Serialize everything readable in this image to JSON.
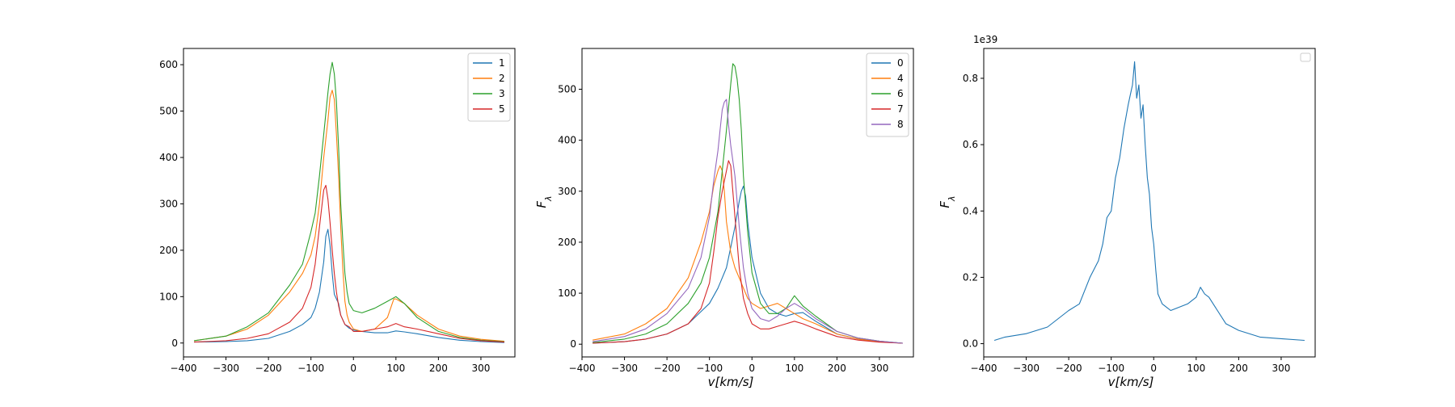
{
  "chart_data": [
    {
      "type": "line",
      "title": "",
      "xlabel": "",
      "ylabel": "",
      "xlim": [
        -400,
        380
      ],
      "ylim": [
        -30,
        635
      ],
      "xticks": [
        -400,
        -300,
        -200,
        -100,
        0,
        100,
        200,
        300
      ],
      "yticks": [
        0,
        100,
        200,
        300,
        400,
        500,
        600
      ],
      "xtick_labels": [
        "−400",
        "−300",
        "−200",
        "−100",
        "0",
        "100",
        "200",
        "300"
      ],
      "ytick_labels": [
        "0",
        "100",
        "200",
        "300",
        "400",
        "500",
        "600"
      ],
      "legend": {
        "position": "top-right",
        "entries": [
          "1",
          "2",
          "3",
          "5"
        ]
      },
      "series": [
        {
          "name": "1",
          "color": "#1f77b4",
          "x": [
            -375,
            -300,
            -250,
            -200,
            -150,
            -120,
            -100,
            -90,
            -80,
            -70,
            -65,
            -60,
            -55,
            -50,
            -45,
            -40,
            -35,
            -30,
            -20,
            -10,
            0,
            20,
            50,
            80,
            100,
            120,
            150,
            200,
            250,
            300,
            355
          ],
          "y": [
            2,
            3,
            5,
            10,
            25,
            40,
            55,
            75,
            110,
            175,
            230,
            245,
            210,
            150,
            105,
            95,
            85,
            60,
            40,
            32,
            28,
            25,
            22,
            22,
            26,
            24,
            20,
            12,
            6,
            3,
            1
          ]
        },
        {
          "name": "2",
          "color": "#ff7f0e",
          "x": [
            -375,
            -300,
            -250,
            -200,
            -150,
            -120,
            -100,
            -90,
            -80,
            -70,
            -60,
            -55,
            -50,
            -45,
            -40,
            -35,
            -30,
            -25,
            -20,
            -15,
            -10,
            0,
            20,
            50,
            80,
            95,
            100,
            110,
            120,
            150,
            200,
            250,
            300,
            355
          ],
          "y": [
            5,
            15,
            30,
            60,
            110,
            150,
            190,
            230,
            300,
            400,
            480,
            530,
            545,
            525,
            450,
            360,
            250,
            160,
            90,
            60,
            45,
            30,
            25,
            30,
            55,
            95,
            95,
            90,
            85,
            60,
            30,
            15,
            8,
            4
          ]
        },
        {
          "name": "3",
          "color": "#2ca02c",
          "x": [
            -375,
            -300,
            -250,
            -200,
            -150,
            -120,
            -100,
            -90,
            -80,
            -70,
            -60,
            -55,
            -50,
            -45,
            -40,
            -35,
            -30,
            -25,
            -20,
            -15,
            -10,
            0,
            20,
            50,
            80,
            100,
            120,
            150,
            200,
            250,
            300,
            355
          ],
          "y": [
            5,
            15,
            35,
            65,
            125,
            170,
            240,
            280,
            360,
            450,
            540,
            580,
            605,
            580,
            520,
            420,
            300,
            220,
            150,
            110,
            85,
            70,
            65,
            75,
            90,
            100,
            85,
            55,
            25,
            12,
            6,
            3
          ]
        },
        {
          "name": "5",
          "color": "#d62728",
          "x": [
            -375,
            -300,
            -250,
            -200,
            -150,
            -120,
            -100,
            -90,
            -80,
            -70,
            -65,
            -60,
            -55,
            -50,
            -45,
            -40,
            -35,
            -30,
            -20,
            -10,
            0,
            20,
            50,
            80,
            100,
            120,
            150,
            200,
            250,
            300,
            355
          ],
          "y": [
            2,
            5,
            10,
            20,
            45,
            75,
            120,
            170,
            250,
            330,
            340,
            310,
            260,
            200,
            150,
            110,
            80,
            60,
            40,
            35,
            25,
            25,
            30,
            35,
            42,
            35,
            30,
            20,
            10,
            5,
            2
          ]
        }
      ]
    },
    {
      "type": "line",
      "title": "",
      "xlabel": "v[km/s]",
      "ylabel": "F_λ",
      "xlim": [
        -400,
        380
      ],
      "ylim": [
        -25,
        580
      ],
      "xticks": [
        -400,
        -300,
        -200,
        -100,
        0,
        100,
        200,
        300
      ],
      "yticks": [
        0,
        100,
        200,
        300,
        400,
        500
      ],
      "xtick_labels": [
        "−400",
        "−300",
        "−200",
        "−100",
        "0",
        "100",
        "200",
        "300"
      ],
      "ytick_labels": [
        "0",
        "100",
        "200",
        "300",
        "400",
        "500"
      ],
      "legend": {
        "position": "top-right",
        "entries": [
          "0",
          "4",
          "6",
          "7",
          "8"
        ]
      },
      "series": [
        {
          "name": "0",
          "color": "#1f77b4",
          "x": [
            -375,
            -300,
            -250,
            -200,
            -150,
            -100,
            -80,
            -60,
            -50,
            -40,
            -30,
            -25,
            -20,
            -15,
            -10,
            0,
            20,
            40,
            60,
            80,
            100,
            120,
            150,
            200,
            250,
            300,
            355
          ],
          "y": [
            2,
            5,
            10,
            20,
            40,
            80,
            110,
            150,
            190,
            230,
            280,
            300,
            310,
            290,
            240,
            170,
            100,
            70,
            60,
            55,
            60,
            62,
            45,
            20,
            10,
            5,
            2
          ]
        },
        {
          "name": "4",
          "color": "#ff7f0e",
          "x": [
            -375,
            -300,
            -250,
            -200,
            -150,
            -120,
            -100,
            -90,
            -80,
            -75,
            -70,
            -65,
            -60,
            -50,
            -40,
            -30,
            -20,
            -10,
            0,
            20,
            40,
            60,
            80,
            100,
            120,
            150,
            200,
            250,
            300,
            355
          ],
          "y": [
            8,
            20,
            40,
            70,
            130,
            200,
            260,
            310,
            340,
            350,
            340,
            300,
            240,
            180,
            150,
            130,
            110,
            90,
            80,
            70,
            75,
            80,
            70,
            60,
            50,
            40,
            20,
            10,
            5,
            2
          ]
        },
        {
          "name": "6",
          "color": "#2ca02c",
          "x": [
            -375,
            -300,
            -250,
            -200,
            -150,
            -120,
            -100,
            -80,
            -70,
            -60,
            -50,
            -45,
            -40,
            -35,
            -30,
            -25,
            -20,
            -10,
            0,
            20,
            40,
            60,
            80,
            100,
            120,
            150,
            200,
            250,
            300,
            355
          ],
          "y": [
            3,
            10,
            20,
            40,
            80,
            120,
            170,
            260,
            340,
            420,
            510,
            550,
            545,
            520,
            480,
            420,
            330,
            220,
            140,
            80,
            60,
            60,
            70,
            95,
            75,
            55,
            25,
            12,
            6,
            2
          ]
        },
        {
          "name": "7",
          "color": "#d62728",
          "x": [
            -375,
            -300,
            -250,
            -200,
            -150,
            -120,
            -100,
            -90,
            -80,
            -70,
            -60,
            -55,
            -50,
            -45,
            -40,
            -35,
            -30,
            -20,
            -10,
            0,
            20,
            40,
            60,
            80,
            100,
            120,
            150,
            200,
            250,
            300,
            355
          ],
          "y": [
            2,
            5,
            10,
            20,
            40,
            70,
            120,
            180,
            250,
            300,
            340,
            360,
            350,
            300,
            250,
            200,
            150,
            90,
            60,
            40,
            30,
            30,
            35,
            40,
            45,
            40,
            30,
            15,
            8,
            4,
            2
          ]
        },
        {
          "name": "8",
          "color": "#9467bd",
          "x": [
            -375,
            -300,
            -250,
            -200,
            -150,
            -120,
            -100,
            -90,
            -80,
            -75,
            -70,
            -65,
            -60,
            -55,
            -50,
            -45,
            -40,
            -35,
            -30,
            -20,
            -10,
            0,
            20,
            40,
            60,
            80,
            100,
            120,
            150,
            200,
            250,
            300,
            355
          ],
          "y": [
            5,
            15,
            30,
            60,
            110,
            170,
            250,
            320,
            380,
            420,
            460,
            475,
            480,
            430,
            390,
            360,
            330,
            280,
            230,
            150,
            100,
            70,
            50,
            45,
            55,
            70,
            80,
            70,
            50,
            25,
            12,
            6,
            2
          ]
        }
      ]
    },
    {
      "type": "line",
      "title": "",
      "offset_label": "1e39",
      "xlabel": "v[km/s]",
      "ylabel": "F_λ",
      "xlim": [
        -400,
        380
      ],
      "ylim": [
        -0.04,
        0.89
      ],
      "xticks": [
        -400,
        -300,
        -200,
        -100,
        0,
        100,
        200,
        300
      ],
      "yticks": [
        0,
        0.2,
        0.4,
        0.6,
        0.8
      ],
      "xtick_labels": [
        "−400",
        "−300",
        "−200",
        "−100",
        "0",
        "100",
        "200",
        "300"
      ],
      "ytick_labels": [
        "0.0",
        "0.2",
        "0.4",
        "0.6",
        "0.8"
      ],
      "legend": {
        "position": "top-right",
        "entries": []
      },
      "series": [
        {
          "name": "",
          "color": "#1f77b4",
          "x": [
            -375,
            -350,
            -300,
            -250,
            -200,
            -175,
            -150,
            -130,
            -120,
            -110,
            -100,
            -90,
            -80,
            -70,
            -60,
            -55,
            -50,
            -45,
            -40,
            -35,
            -30,
            -25,
            -20,
            -15,
            -10,
            -5,
            0,
            5,
            10,
            20,
            40,
            60,
            80,
            100,
            110,
            120,
            130,
            150,
            170,
            200,
            250,
            300,
            355
          ],
          "y": [
            0.01,
            0.02,
            0.03,
            0.05,
            0.1,
            0.12,
            0.2,
            0.25,
            0.3,
            0.38,
            0.4,
            0.5,
            0.56,
            0.65,
            0.72,
            0.75,
            0.78,
            0.85,
            0.74,
            0.78,
            0.68,
            0.72,
            0.6,
            0.5,
            0.45,
            0.35,
            0.3,
            0.22,
            0.15,
            0.12,
            0.1,
            0.11,
            0.12,
            0.14,
            0.17,
            0.15,
            0.14,
            0.1,
            0.06,
            0.04,
            0.02,
            0.015,
            0.01
          ]
        }
      ]
    }
  ]
}
